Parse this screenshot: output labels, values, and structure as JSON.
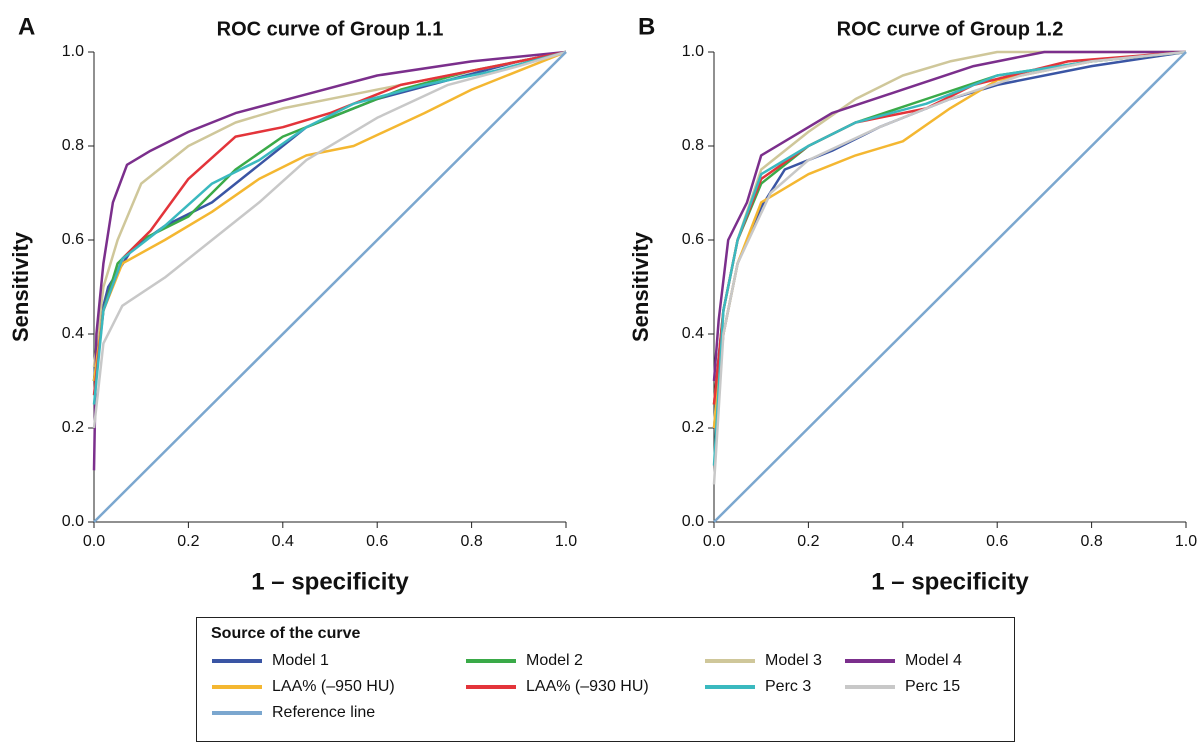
{
  "chart_data": [
    {
      "type": "line",
      "panel_label": "A",
      "title": "ROC curve of Group 1.1",
      "x_label": "1 – specificity",
      "y_label": "Sensitivity",
      "xlim": [
        0,
        1
      ],
      "ylim": [
        0,
        1
      ],
      "xticks": [
        {
          "value": 0,
          "label": "0.0"
        },
        0.2,
        0.4,
        0.6,
        0.8,
        {
          "value": 1,
          "label": "1.0"
        }
      ],
      "yticks": [
        {
          "value": 0,
          "label": "0.0"
        },
        0.2,
        0.4,
        0.6,
        0.8,
        {
          "value": 1,
          "label": "1.0"
        }
      ],
      "legend_title": "Source of the curve",
      "series": [
        {
          "name": "Model 1",
          "color": "#3a55a4",
          "x": [
            0,
            0.01,
            0.03,
            0.08,
            0.15,
            0.25,
            0.35,
            0.45,
            0.6,
            0.75,
            0.9,
            1
          ],
          "values": [
            0.3,
            0.42,
            0.5,
            0.58,
            0.63,
            0.68,
            0.76,
            0.84,
            0.9,
            0.94,
            0.98,
            1
          ]
        },
        {
          "name": "Model 2",
          "color": "#3aaa48",
          "x": [
            0,
            0.02,
            0.05,
            0.1,
            0.2,
            0.3,
            0.4,
            0.5,
            0.65,
            0.8,
            1
          ],
          "values": [
            0.3,
            0.45,
            0.55,
            0.6,
            0.65,
            0.75,
            0.82,
            0.86,
            0.92,
            0.96,
            1
          ]
        },
        {
          "name": "Model 3",
          "color": "#cfc79a",
          "x": [
            0,
            0.02,
            0.05,
            0.1,
            0.2,
            0.3,
            0.4,
            0.55,
            0.7,
            0.85,
            1
          ],
          "values": [
            0.33,
            0.5,
            0.6,
            0.72,
            0.8,
            0.85,
            0.88,
            0.91,
            0.94,
            0.97,
            1
          ]
        },
        {
          "name": "Model 4",
          "color": "#7b2f8c",
          "x": [
            0,
            0.005,
            0.02,
            0.04,
            0.07,
            0.12,
            0.2,
            0.3,
            0.45,
            0.6,
            0.8,
            1
          ],
          "values": [
            0.11,
            0.4,
            0.55,
            0.68,
            0.76,
            0.79,
            0.83,
            0.87,
            0.91,
            0.95,
            0.98,
            1
          ]
        },
        {
          "name": "LAA% (–950 HU)",
          "color": "#f4b731",
          "x": [
            0,
            0.02,
            0.06,
            0.15,
            0.25,
            0.35,
            0.45,
            0.55,
            0.7,
            0.8,
            0.9,
            1
          ],
          "values": [
            0.3,
            0.45,
            0.55,
            0.6,
            0.66,
            0.73,
            0.78,
            0.8,
            0.87,
            0.92,
            0.96,
            1
          ]
        },
        {
          "name": "LAA% (–930 HU)",
          "color": "#e3343a",
          "x": [
            0,
            0.02,
            0.06,
            0.12,
            0.2,
            0.3,
            0.4,
            0.5,
            0.65,
            0.8,
            1
          ],
          "values": [
            0.27,
            0.45,
            0.56,
            0.62,
            0.73,
            0.82,
            0.84,
            0.87,
            0.93,
            0.96,
            1
          ]
        },
        {
          "name": "Perc 3",
          "color": "#3ab9bf",
          "x": [
            0,
            0.02,
            0.06,
            0.15,
            0.25,
            0.35,
            0.45,
            0.55,
            0.7,
            0.85,
            1
          ],
          "values": [
            0.25,
            0.45,
            0.56,
            0.63,
            0.72,
            0.77,
            0.84,
            0.89,
            0.93,
            0.96,
            1
          ]
        },
        {
          "name": "Perc 15",
          "color": "#c8c8c8",
          "x": [
            0,
            0.02,
            0.06,
            0.15,
            0.25,
            0.35,
            0.45,
            0.6,
            0.75,
            0.9,
            1
          ],
          "values": [
            0.2,
            0.38,
            0.46,
            0.52,
            0.6,
            0.68,
            0.77,
            0.86,
            0.93,
            0.97,
            1
          ]
        },
        {
          "name": "Reference line",
          "color": "#7ba7cf",
          "x": [
            0,
            1
          ],
          "values": [
            0,
            1
          ]
        }
      ]
    },
    {
      "type": "line",
      "panel_label": "B",
      "title": "ROC curve of Group 1.2",
      "x_label": "1 – specificity",
      "y_label": "Sensitivity",
      "xlim": [
        0,
        1
      ],
      "ylim": [
        0,
        1
      ],
      "xticks": [
        {
          "value": 0,
          "label": "0.0"
        },
        0.2,
        0.4,
        0.6,
        0.8,
        {
          "value": 1,
          "label": "1.0"
        }
      ],
      "yticks": [
        {
          "value": 0,
          "label": "0.0"
        },
        0.2,
        0.4,
        0.6,
        0.8,
        {
          "value": 1,
          "label": "1.0"
        }
      ],
      "series": [
        {
          "name": "Model 1",
          "color": "#3a55a4",
          "x": [
            0,
            0.02,
            0.05,
            0.1,
            0.15,
            0.25,
            0.35,
            0.5,
            0.6,
            0.8,
            1
          ],
          "values": [
            0.2,
            0.4,
            0.55,
            0.67,
            0.75,
            0.79,
            0.84,
            0.9,
            0.93,
            0.97,
            1
          ]
        },
        {
          "name": "Model 2",
          "color": "#3aaa48",
          "x": [
            0,
            0.02,
            0.05,
            0.1,
            0.2,
            0.3,
            0.45,
            0.6,
            0.8,
            1
          ],
          "values": [
            0.25,
            0.45,
            0.6,
            0.72,
            0.8,
            0.85,
            0.9,
            0.95,
            0.98,
            1
          ]
        },
        {
          "name": "Model 3",
          "color": "#cfc79a",
          "x": [
            0,
            0.02,
            0.05,
            0.1,
            0.2,
            0.3,
            0.4,
            0.5,
            0.6,
            1
          ],
          "values": [
            0.2,
            0.45,
            0.6,
            0.75,
            0.83,
            0.9,
            0.95,
            0.98,
            1,
            1
          ]
        },
        {
          "name": "Model 4",
          "color": "#7b2f8c",
          "x": [
            0,
            0.01,
            0.03,
            0.07,
            0.1,
            0.15,
            0.25,
            0.4,
            0.55,
            0.7,
            1
          ],
          "values": [
            0.3,
            0.43,
            0.6,
            0.68,
            0.78,
            0.81,
            0.87,
            0.92,
            0.97,
            1,
            1
          ]
        },
        {
          "name": "LAA% (–950 HU)",
          "color": "#f4b731",
          "x": [
            0,
            0.02,
            0.05,
            0.1,
            0.2,
            0.3,
            0.4,
            0.5,
            0.6,
            0.8,
            1
          ],
          "values": [
            0.2,
            0.4,
            0.55,
            0.68,
            0.74,
            0.78,
            0.81,
            0.88,
            0.94,
            0.98,
            1
          ]
        },
        {
          "name": "LAA% (–930 HU)",
          "color": "#e3343a",
          "x": [
            0,
            0.02,
            0.05,
            0.1,
            0.2,
            0.3,
            0.45,
            0.55,
            0.75,
            1
          ],
          "values": [
            0.25,
            0.45,
            0.6,
            0.73,
            0.8,
            0.85,
            0.88,
            0.93,
            0.98,
            1
          ]
        },
        {
          "name": "Perc 3",
          "color": "#3ab9bf",
          "x": [
            0,
            0.02,
            0.05,
            0.1,
            0.2,
            0.3,
            0.45,
            0.6,
            0.8,
            1
          ],
          "values": [
            0.12,
            0.45,
            0.6,
            0.74,
            0.8,
            0.85,
            0.89,
            0.95,
            0.98,
            1
          ]
        },
        {
          "name": "Perc 15",
          "color": "#c8c8c8",
          "x": [
            0,
            0.02,
            0.05,
            0.12,
            0.2,
            0.35,
            0.5,
            0.65,
            0.8,
            1
          ],
          "values": [
            0.08,
            0.4,
            0.55,
            0.7,
            0.77,
            0.84,
            0.9,
            0.95,
            0.98,
            1
          ]
        },
        {
          "name": "Reference line",
          "color": "#7ba7cf",
          "x": [
            0,
            1
          ],
          "values": [
            0,
            1
          ]
        }
      ]
    }
  ]
}
